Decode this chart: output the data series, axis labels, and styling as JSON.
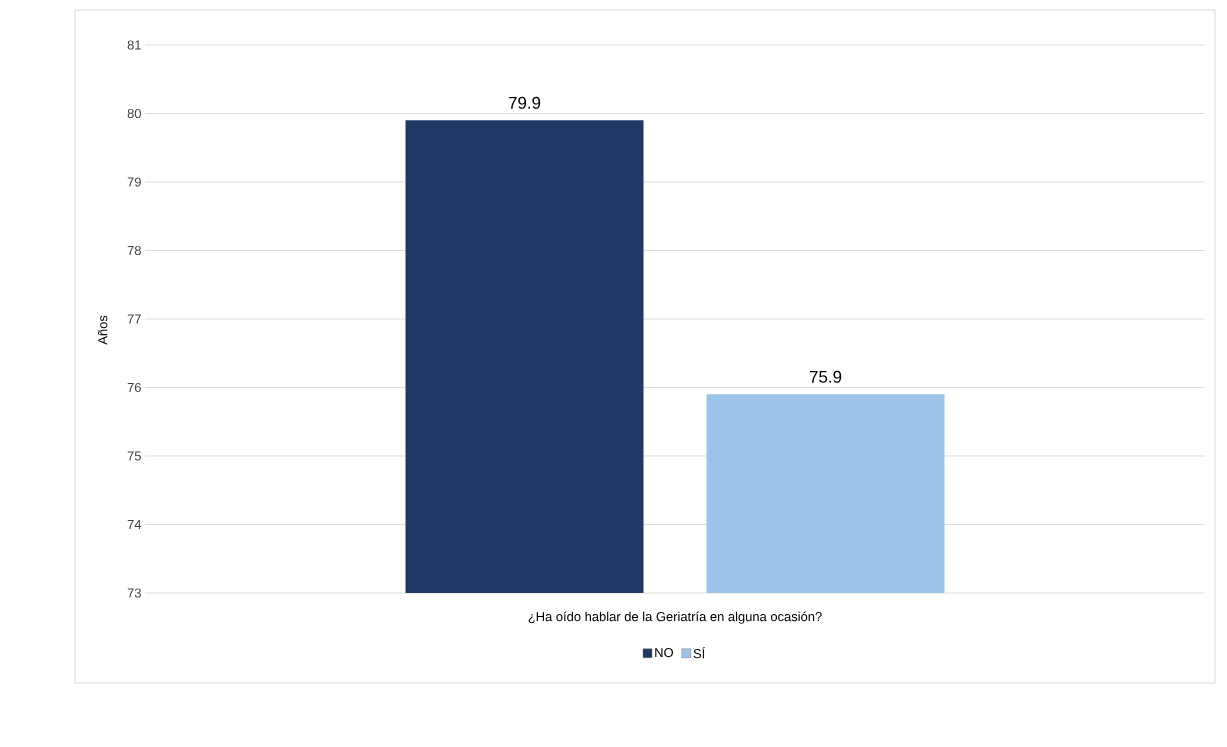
{
  "chart_data": {
    "type": "bar",
    "xlabel": "¿Ha oído hablar de la Geriatría en alguna ocasión?",
    "ylabel": "Años",
    "categories": [
      null
    ],
    "series": [
      {
        "name": "NO",
        "color": "#203864",
        "values": [
          79.9
        ]
      },
      {
        "name": "SÍ",
        "color": "#9dc3e6",
        "values": [
          75.9
        ]
      }
    ],
    "ylim": [
      73,
      81
    ],
    "yticks": [
      73,
      74,
      75,
      76,
      77,
      78,
      79,
      80,
      81
    ],
    "grid": "y",
    "legend": "bottom",
    "data_labels": true
  }
}
